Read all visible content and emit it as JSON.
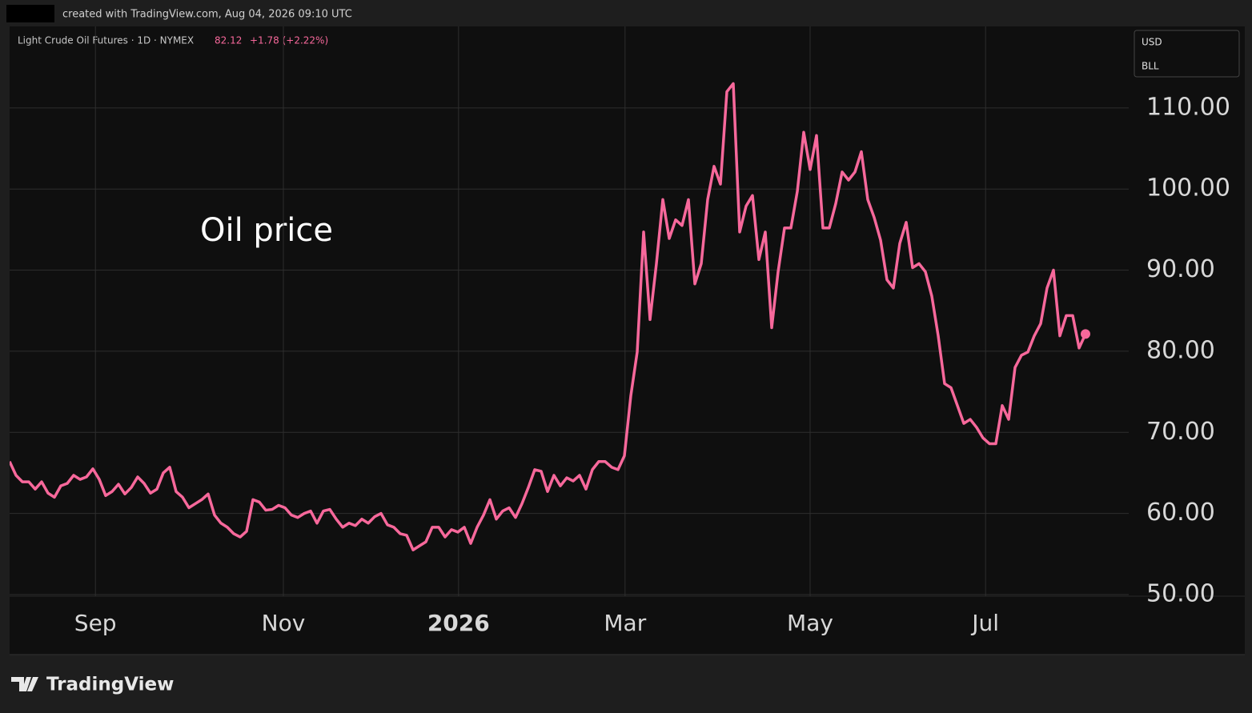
{
  "chart_data": {
    "type": "line",
    "watermark": "created with TradingView.com, Aug 04, 2026 09:10 UTC",
    "symbol": "Light Crude Oil Futures · 1D · NYMEX",
    "last_price": "82.12",
    "change": "+1.78 (+2.22%)",
    "currency": "USD",
    "unit": "BLL",
    "annotation": "Oil price",
    "brand": "TradingView",
    "series": [
      {
        "name": "Light Crude Oil Futures",
        "color": "#f7689b",
        "values": [
          66.4,
          64.7,
          63.9,
          63.9,
          63,
          63.9,
          62.5,
          62,
          63.4,
          63.7,
          64.7,
          64.2,
          64.5,
          65.5,
          64.2,
          62.2,
          62.7,
          63.6,
          62.4,
          63.2,
          64.5,
          63.7,
          62.5,
          63,
          65,
          65.7,
          62.7,
          62,
          60.7,
          61.2,
          61.7,
          62.4,
          59.8,
          58.8,
          58.3,
          57.5,
          57.1,
          57.8,
          61.7,
          61.4,
          60.4,
          60.5,
          61,
          60.7,
          59.8,
          59.5,
          60,
          60.3,
          58.8,
          60.3,
          60.5,
          59.3,
          58.3,
          58.8,
          58.5,
          59.3,
          58.8,
          59.6,
          60,
          58.6,
          58.3,
          57.5,
          57.3,
          55.5,
          56,
          56.5,
          58.3,
          58.3,
          57.1,
          58,
          57.7,
          58.3,
          56.3,
          58.3,
          59.8,
          61.7,
          59.3,
          60.3,
          60.7,
          59.5,
          61.2,
          63.2,
          65.4,
          65.2,
          62.7,
          64.7,
          63.4,
          64.4,
          64,
          64.7,
          63,
          65.4,
          66.4,
          66.4,
          65.7,
          65.4,
          67.1,
          74.5,
          79.9,
          94.7,
          83.9,
          90.8,
          98.7,
          93.9,
          96.2,
          95.5,
          98.7,
          88.3,
          90.8,
          98.7,
          102.8,
          100.6,
          112,
          113,
          94.7,
          97.9,
          99.2,
          91.3,
          94.7,
          82.9,
          89.8,
          95.2,
          95.2,
          99.7,
          107,
          102.4,
          106.6,
          95.2,
          95.2,
          98.2,
          102.1,
          101.1,
          102.1,
          104.6,
          98.7,
          96.5,
          93.7,
          88.8,
          87.8,
          93.3,
          95.9,
          90.3,
          90.8,
          89.8,
          86.8,
          81.9,
          76,
          75.5,
          73.3,
          71.1,
          71.6,
          70.6,
          69.3,
          68.6,
          68.6,
          73.3,
          71.6,
          78,
          79.5,
          79.9,
          81.9,
          83.4,
          87.8,
          90,
          81.9,
          84.4,
          84.4,
          80.4,
          82.12
        ]
      }
    ],
    "xlim": [
      0,
      174.75
    ],
    "xticks": [
      {
        "value": 13.4,
        "label": "Sep"
      },
      {
        "value": 42.75,
        "label": "Nov"
      },
      {
        "value": 70.1,
        "label": "2026"
      },
      {
        "value": 96.1,
        "label": "Mar"
      },
      {
        "value": 125,
        "label": "May"
      },
      {
        "value": 152.4,
        "label": "Jul"
      }
    ],
    "ylim": [
      49.8,
      120.05
    ],
    "yticks": [
      {
        "value": 50,
        "label": "50.00"
      },
      {
        "value": 60,
        "label": "60.00"
      },
      {
        "value": 70,
        "label": "70.00"
      },
      {
        "value": 80,
        "label": "80.00"
      },
      {
        "value": 90,
        "label": "90.00"
      },
      {
        "value": 100,
        "label": "100.00"
      },
      {
        "value": 110,
        "label": "110.00"
      }
    ],
    "grid": true
  }
}
